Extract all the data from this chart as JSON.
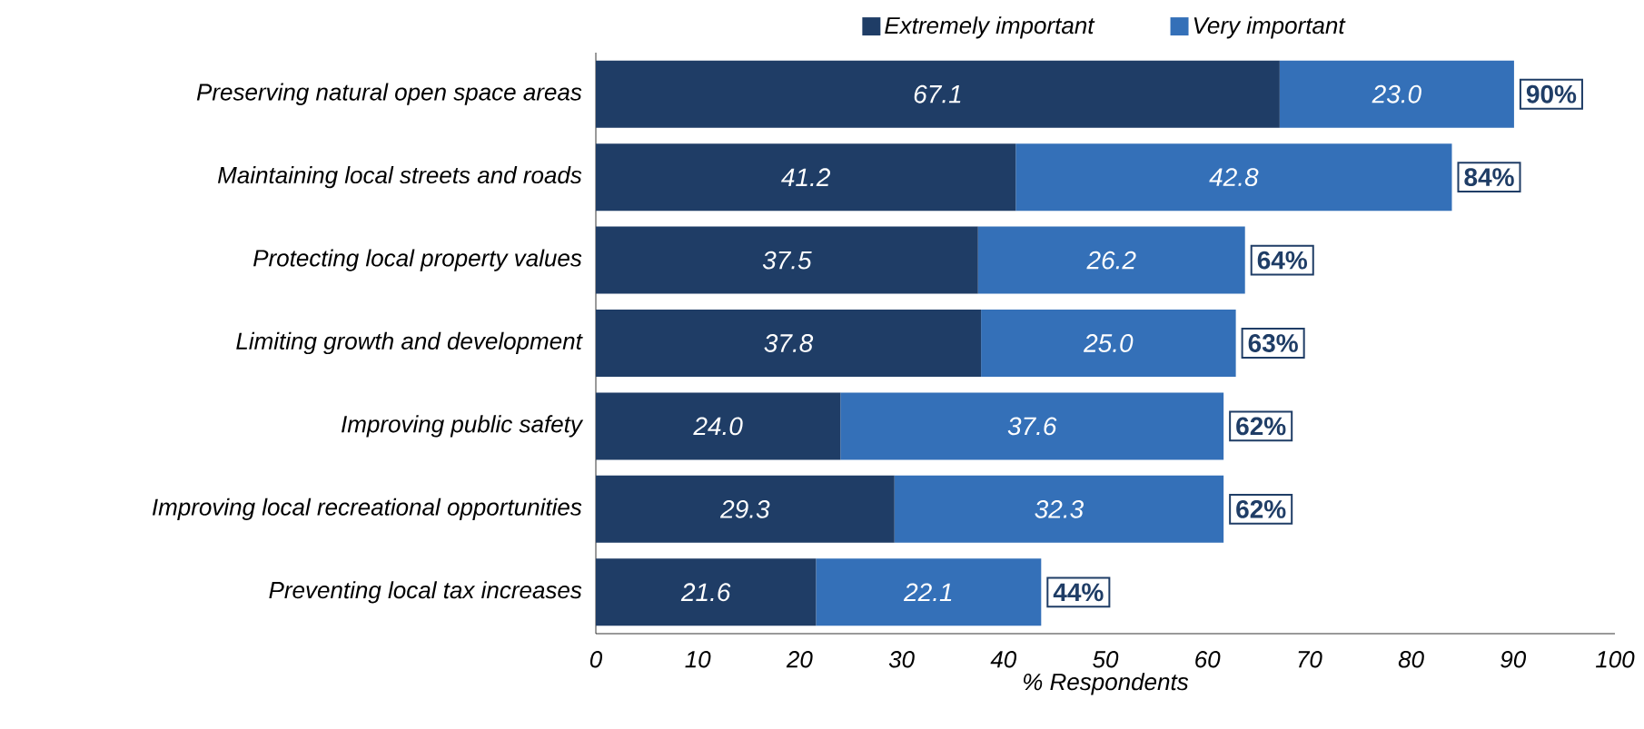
{
  "chart_data": {
    "type": "bar",
    "orientation": "horizontal",
    "stacked": true,
    "xlabel": "% Respondents",
    "categories": [
      "Preserving natural open space areas",
      "Maintaining local streets and roads",
      "Protecting local property values",
      "Limiting growth and development",
      "Improving public safety",
      "Improving local recreational opportunities",
      "Preventing local tax increases"
    ],
    "series": [
      {
        "name": "Extremely important",
        "color": "#1f3d66",
        "values": [
          67.1,
          41.2,
          37.5,
          37.8,
          24.0,
          29.3,
          21.6
        ],
        "value_labels": [
          "67.1",
          "41.2",
          "37.5",
          "37.8",
          "24.0",
          "29.3",
          "21.6"
        ]
      },
      {
        "name": "Very important",
        "color": "#3470b8",
        "values": [
          23.0,
          42.8,
          26.2,
          25.0,
          37.6,
          32.3,
          22.1
        ],
        "value_labels": [
          "23.0",
          "42.8",
          "26.2",
          "25.0",
          "37.6",
          "32.3",
          "22.1"
        ]
      }
    ],
    "totals": [
      "90%",
      "84%",
      "64%",
      "63%",
      "62%",
      "62%",
      "44%"
    ],
    "legend": "top",
    "grid": false,
    "xlim": [
      0,
      100
    ],
    "xticks": [
      0,
      10,
      20,
      30,
      40,
      50,
      60,
      70,
      80,
      90,
      100
    ]
  }
}
